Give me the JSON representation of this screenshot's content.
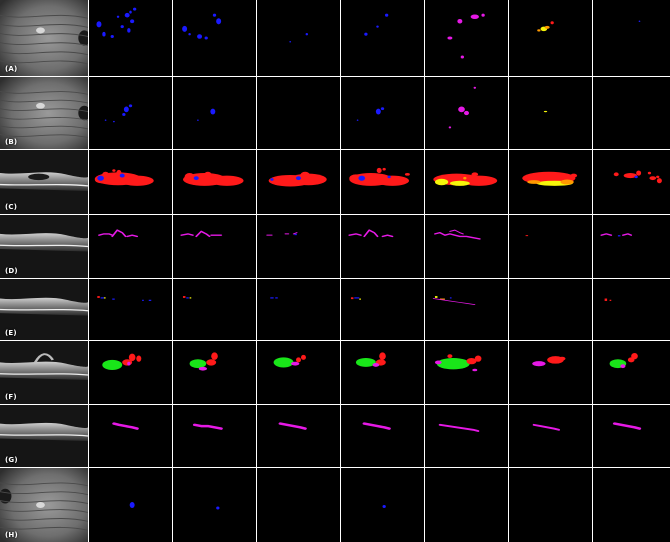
{
  "figure": {
    "rows": [
      {
        "label": "(A)",
        "image": "fundus-infrared"
      },
      {
        "label": "(B)",
        "image": "fundus-infrared"
      },
      {
        "label": "(C)",
        "image": "oct-bscan"
      },
      {
        "label": "(D)",
        "image": "oct-bscan"
      },
      {
        "label": "(E)",
        "image": "oct-bscan"
      },
      {
        "label": "(F)",
        "image": "oct-bscan"
      },
      {
        "label": "(G)",
        "image": "oct-bscan"
      },
      {
        "label": "(H)",
        "image": "fundus-infrared"
      }
    ],
    "mask_columns": 7,
    "colors": {
      "blue": "#1a1aff",
      "red": "#ff1a1a",
      "magenta": "#e619e6",
      "green": "#19e619",
      "yellow": "#f5f50a",
      "orange": "#ff9900",
      "background": "#000000",
      "divider": "#ffffff"
    }
  }
}
